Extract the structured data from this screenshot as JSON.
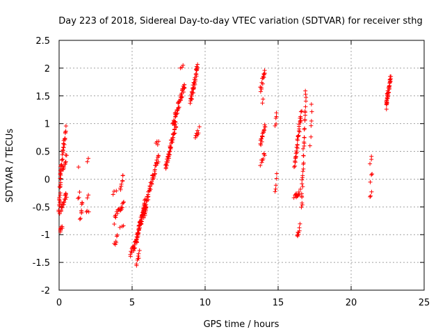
{
  "chart_data": {
    "type": "scatter",
    "title": "Day 223 of 2018, Sidereal Day-to-day VTEC variation (SDTVAR) for receiver sthg",
    "xlabel": "GPS time / hours",
    "ylabel": "SDTVAR / TECUs",
    "xlim": [
      0,
      25
    ],
    "ylim": [
      -2,
      2.5
    ],
    "xticks": [
      0,
      5,
      10,
      15,
      20,
      25
    ],
    "xtick_labels": [
      "0",
      "5",
      "10",
      "15",
      "20",
      "25"
    ],
    "yticks": [
      -2,
      -1.5,
      -1,
      -0.5,
      0,
      0.5,
      1,
      1.5,
      2,
      2.5
    ],
    "ytick_labels": [
      "-2",
      "-1.5",
      "-1",
      "-0.5",
      "0",
      "0.5",
      "1",
      "1.5",
      "2",
      "2.5"
    ],
    "grid": true,
    "marker": "+",
    "marker_color": "#ff0000",
    "segments": [
      {
        "x0": 0.0,
        "x1": 0.1,
        "y0": -0.6,
        "y1": 0.2,
        "n": 24
      },
      {
        "x0": 0.08,
        "x1": 0.2,
        "y0": -0.95,
        "y1": -0.85,
        "n": 8
      },
      {
        "x0": 0.12,
        "x1": 0.45,
        "y0": 0.2,
        "y1": 0.9,
        "n": 26
      },
      {
        "x0": 0.15,
        "x1": 0.5,
        "y0": -0.55,
        "y1": -0.25,
        "n": 20
      },
      {
        "x0": 0.25,
        "x1": 0.5,
        "y0": 0.15,
        "y1": 0.4,
        "n": 12
      },
      {
        "x0": 1.3,
        "x1": 1.3,
        "y0": 0.2,
        "y1": 0.2,
        "n": 1
      },
      {
        "x0": 1.3,
        "x1": 1.4,
        "y0": -0.35,
        "y1": -0.25,
        "n": 3
      },
      {
        "x0": 1.4,
        "x1": 1.5,
        "y0": -0.7,
        "y1": -0.6,
        "n": 3
      },
      {
        "x0": 1.5,
        "x1": 1.6,
        "y0": -0.6,
        "y1": -0.4,
        "n": 5
      },
      {
        "x0": 1.9,
        "x1": 2.0,
        "y0": 0.3,
        "y1": 0.35,
        "n": 2
      },
      {
        "x0": 1.9,
        "x1": 2.0,
        "y0": -0.3,
        "y1": -0.25,
        "n": 2
      },
      {
        "x0": 1.9,
        "x1": 2.0,
        "y0": -0.62,
        "y1": -0.55,
        "n": 3
      },
      {
        "x0": 3.7,
        "x1": 3.9,
        "y0": -0.3,
        "y1": -0.25,
        "n": 3
      },
      {
        "x0": 3.8,
        "x1": 4.0,
        "y0": -0.75,
        "y1": -0.55,
        "n": 8
      },
      {
        "x0": 3.8,
        "x1": 4.0,
        "y0": -1.15,
        "y1": -1.05,
        "n": 6
      },
      {
        "x0": 4.1,
        "x1": 4.4,
        "y0": -0.6,
        "y1": -0.4,
        "n": 12
      },
      {
        "x0": 4.2,
        "x1": 4.4,
        "y0": -0.2,
        "y1": 0.1,
        "n": 8
      },
      {
        "x0": 4.2,
        "x1": 4.4,
        "y0": -0.9,
        "y1": -0.85,
        "n": 3
      },
      {
        "x0": 4.9,
        "x1": 5.3,
        "y0": -1.35,
        "y1": -1.1,
        "n": 20
      },
      {
        "x0": 5.3,
        "x1": 5.5,
        "y0": -1.55,
        "y1": -1.3,
        "n": 8
      },
      {
        "x0": 5.3,
        "x1": 5.9,
        "y0": -1.1,
        "y1": -0.4,
        "n": 55
      },
      {
        "x0": 5.5,
        "x1": 6.0,
        "y0": -0.8,
        "y1": -0.55,
        "n": 20
      },
      {
        "x0": 5.9,
        "x1": 6.8,
        "y0": -0.5,
        "y1": 0.4,
        "n": 45
      },
      {
        "x0": 6.6,
        "x1": 6.8,
        "y0": 0.6,
        "y1": 0.7,
        "n": 4
      },
      {
        "x0": 7.3,
        "x1": 8.0,
        "y0": 0.2,
        "y1": 1.0,
        "n": 45
      },
      {
        "x0": 7.8,
        "x1": 8.6,
        "y0": 1.0,
        "y1": 1.7,
        "n": 45
      },
      {
        "x0": 8.3,
        "x1": 8.5,
        "y0": 2.0,
        "y1": 2.0,
        "n": 3
      },
      {
        "x0": 9.0,
        "x1": 9.5,
        "y0": 1.4,
        "y1": 2.05,
        "n": 45
      },
      {
        "x0": 9.3,
        "x1": 9.6,
        "y0": 0.75,
        "y1": 0.9,
        "n": 8
      },
      {
        "x0": 13.8,
        "x1": 14.1,
        "y0": 1.6,
        "y1": 1.95,
        "n": 14
      },
      {
        "x0": 13.9,
        "x1": 14.0,
        "y0": 1.4,
        "y1": 1.45,
        "n": 2
      },
      {
        "x0": 13.8,
        "x1": 14.1,
        "y0": 0.6,
        "y1": 1.0,
        "n": 18
      },
      {
        "x0": 13.8,
        "x1": 14.1,
        "y0": 0.3,
        "y1": 0.45,
        "n": 8
      },
      {
        "x0": 14.8,
        "x1": 14.9,
        "y0": 1.0,
        "y1": 1.2,
        "n": 5
      },
      {
        "x0": 14.8,
        "x1": 14.9,
        "y0": -0.2,
        "y1": 0.1,
        "n": 5
      },
      {
        "x0": 16.1,
        "x1": 16.6,
        "y0": 0.2,
        "y1": 1.2,
        "n": 35
      },
      {
        "x0": 16.1,
        "x1": 16.5,
        "y0": -0.35,
        "y1": -0.2,
        "n": 12
      },
      {
        "x0": 16.3,
        "x1": 16.5,
        "y0": -1.05,
        "y1": -0.8,
        "n": 8
      },
      {
        "x0": 16.6,
        "x1": 16.9,
        "y0": -0.55,
        "y1": 1.55,
        "n": 35
      },
      {
        "x0": 17.2,
        "x1": 17.3,
        "y0": 0.6,
        "y1": 1.4,
        "n": 6
      },
      {
        "x0": 21.3,
        "x1": 21.4,
        "y0": 0.3,
        "y1": 0.4,
        "n": 3
      },
      {
        "x0": 21.3,
        "x1": 21.4,
        "y0": 0.0,
        "y1": 0.05,
        "n": 3
      },
      {
        "x0": 21.3,
        "x1": 21.4,
        "y0": -0.3,
        "y1": -0.2,
        "n": 3
      },
      {
        "x0": 22.4,
        "x1": 22.7,
        "y0": 1.3,
        "y1": 1.85,
        "n": 40
      }
    ]
  }
}
